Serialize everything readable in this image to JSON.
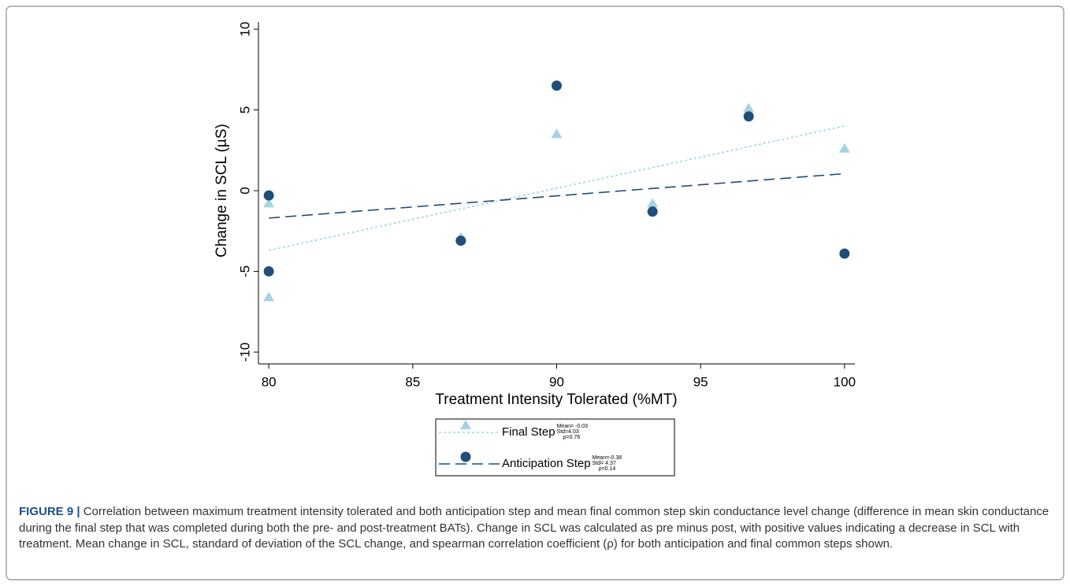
{
  "chart_data": {
    "type": "scatter",
    "xlabel": "Treatment Intensity Tolerated (%MT)",
    "ylabel": "Change in SCL (µS)",
    "xlim": [
      79.64,
      100.36
    ],
    "ylim": [
      -10.73,
      10.44
    ],
    "xticks": [
      80,
      85,
      90,
      95,
      100
    ],
    "yticks": [
      10,
      5,
      0,
      -5,
      -10
    ],
    "series": [
      {
        "name": "Final Step",
        "color": "#a6d3e3",
        "marker": "triangle",
        "x": [
          80,
          80,
          86.67,
          90,
          93.33,
          96.67,
          100
        ],
        "values": [
          -0.8,
          -6.6,
          -2.9,
          3.5,
          -0.8,
          5.1,
          2.6
        ],
        "fit": {
          "x": [
            80,
            100
          ],
          "y": [
            -3.7,
            4.0
          ]
        },
        "stats": [
          "Mean= -0.03",
          "Std=4.03",
          "ρ=0.76"
        ]
      },
      {
        "name": "Anticipation Step",
        "color": "#1f4e79",
        "marker": "circle",
        "x": [
          80,
          80,
          86.67,
          90,
          93.33,
          96.67,
          100
        ],
        "values": [
          -0.3,
          -5.0,
          -3.1,
          6.5,
          -1.3,
          4.6,
          -3.9
        ],
        "fit": {
          "x": [
            80,
            100
          ],
          "y": [
            -1.7,
            1.05
          ]
        },
        "stats": [
          "Mean=-0.38",
          "Std= 4.37",
          "ρ=0.14"
        ]
      }
    ]
  },
  "caption": {
    "label": "FIGURE 9 |",
    "text": "Correlation between maximum treatment intensity tolerated and both anticipation step and mean final common step skin conductance level change (difference in mean skin conductance during the final step that was completed during both the pre- and post-treatment BATs). Change in SCL was calculated as pre minus post, with positive values indicating a decrease in SCL with treatment. Mean change in SCL, standard of deviation of the SCL change, and spearman correlation coefficient (ρ) for both anticipation and final common steps shown."
  }
}
